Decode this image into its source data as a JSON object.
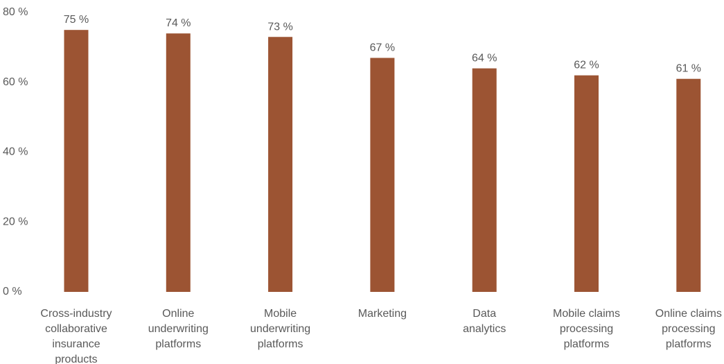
{
  "chart_data": {
    "type": "bar",
    "categories": [
      "Cross-industry collaborative insurance products",
      "Online underwriting platforms",
      "Mobile underwriting platforms",
      "Marketing",
      "Data analytics",
      "Mobile claims processing platforms",
      "Online claims processing platforms"
    ],
    "category_lines": [
      [
        "Cross-industry",
        "collaborative",
        "insurance",
        "products"
      ],
      [
        "Online",
        "underwriting",
        "platforms"
      ],
      [
        "Mobile",
        "underwriting",
        "platforms"
      ],
      [
        "Marketing"
      ],
      [
        "Data",
        "analytics"
      ],
      [
        "Mobile claims",
        "processing",
        "platforms"
      ],
      [
        "Online claims",
        "processing",
        "platforms"
      ]
    ],
    "values": [
      75,
      74,
      73,
      67,
      64,
      62,
      61
    ],
    "value_labels": [
      "75 %",
      "74 %",
      "73 %",
      "67 %",
      "64 %",
      "62 %",
      "61 %"
    ],
    "yticks": [
      0,
      20,
      40,
      60,
      80
    ],
    "ytick_labels": [
      "0 %",
      "20 %",
      "40 %",
      "60 %",
      "80 %"
    ],
    "ylim": [
      0,
      80
    ],
    "grid": false,
    "legend": "none",
    "bar_color": "#9c5433",
    "text_color": "#595959"
  }
}
